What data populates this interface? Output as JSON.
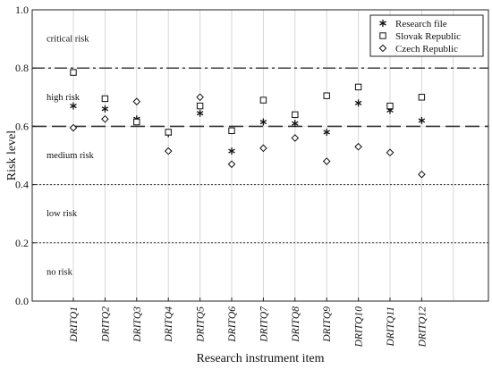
{
  "chart_data": {
    "type": "scatter",
    "xlabel": "Research instrument item",
    "ylabel": "Risk level",
    "ylim": [
      0.0,
      1.0
    ],
    "yticks": [
      "0.0",
      "0.2",
      "0.4",
      "0.6",
      "0.8",
      "1.0"
    ],
    "categories": [
      "DRITQ1",
      "DRITQ2",
      "DRITQ3",
      "DRITQ4",
      "DRITQ5",
      "DRITQ6",
      "DRITQ7",
      "DRITQ8",
      "DRITQ9",
      "DRITQ10",
      "DRITQ11",
      "DRITQ12"
    ],
    "series": [
      {
        "name": "Research file",
        "marker": "asterisk",
        "values": [
          0.67,
          0.66,
          0.625,
          0.575,
          0.645,
          0.515,
          0.615,
          0.61,
          0.58,
          0.68,
          0.655,
          0.62
        ]
      },
      {
        "name": "Slovak Republic",
        "marker": "square",
        "values": [
          0.785,
          0.695,
          0.615,
          0.58,
          0.67,
          0.585,
          0.69,
          0.64,
          0.705,
          0.735,
          0.67,
          0.7
        ]
      },
      {
        "name": "Czech Republic",
        "marker": "diamond",
        "values": [
          0.595,
          0.625,
          0.685,
          0.515,
          0.7,
          0.47,
          0.525,
          0.56,
          0.48,
          0.53,
          0.51,
          0.435
        ]
      }
    ],
    "zones": [
      {
        "label": "critical risk",
        "at": 0.9
      },
      {
        "label": "high risk",
        "at": 0.7
      },
      {
        "label": "medium risk",
        "at": 0.5
      },
      {
        "label": "low risk",
        "at": 0.3
      },
      {
        "label": "no risk",
        "at": 0.1
      }
    ],
    "thresholds": [
      {
        "value": 0.8,
        "style": "dash-dot"
      },
      {
        "value": 0.6,
        "style": "dashed"
      },
      {
        "value": 0.4,
        "style": "dotted"
      },
      {
        "value": 0.2,
        "style": "dotted"
      }
    ],
    "grid": true,
    "legend_position": "top-right"
  }
}
